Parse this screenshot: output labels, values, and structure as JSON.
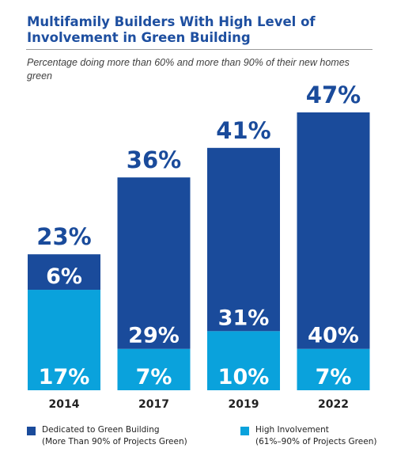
{
  "chart_data": {
    "type": "bar",
    "stacked": true,
    "title": "Multifamily Builders With High Level of Involvement in Green Building",
    "subtitle": "Percentage doing more than 60% and more than 90%  of their new homes green",
    "categories": [
      "2014",
      "2017",
      "2019",
      "2022"
    ],
    "series": [
      {
        "name": "High Involvement",
        "legend_line2": "(61%–90% of Projects Green)",
        "values": [
          17,
          7,
          10,
          7
        ],
        "labels": [
          "17%",
          "7%",
          "10%",
          "7%"
        ],
        "color": "#0aa2dc"
      },
      {
        "name": "Dedicated to Green Building",
        "legend_line2": "(More Than 90% of Projects Green)",
        "values": [
          6,
          29,
          31,
          40
        ],
        "labels": [
          "6%",
          "29%",
          "31%",
          "40%"
        ],
        "color": "#1a4b9b"
      }
    ],
    "totals": [
      23,
      36,
      41,
      47
    ],
    "total_labels": [
      "23%",
      "36%",
      "41%",
      "47%"
    ],
    "ylim": [
      0,
      47
    ],
    "grid": false,
    "legend_position": "bottom",
    "colors": {
      "title": "#1e4fa0",
      "total_label": "#1a4b9b",
      "inner_label": "#ffffff",
      "category_label": "#222222"
    }
  }
}
